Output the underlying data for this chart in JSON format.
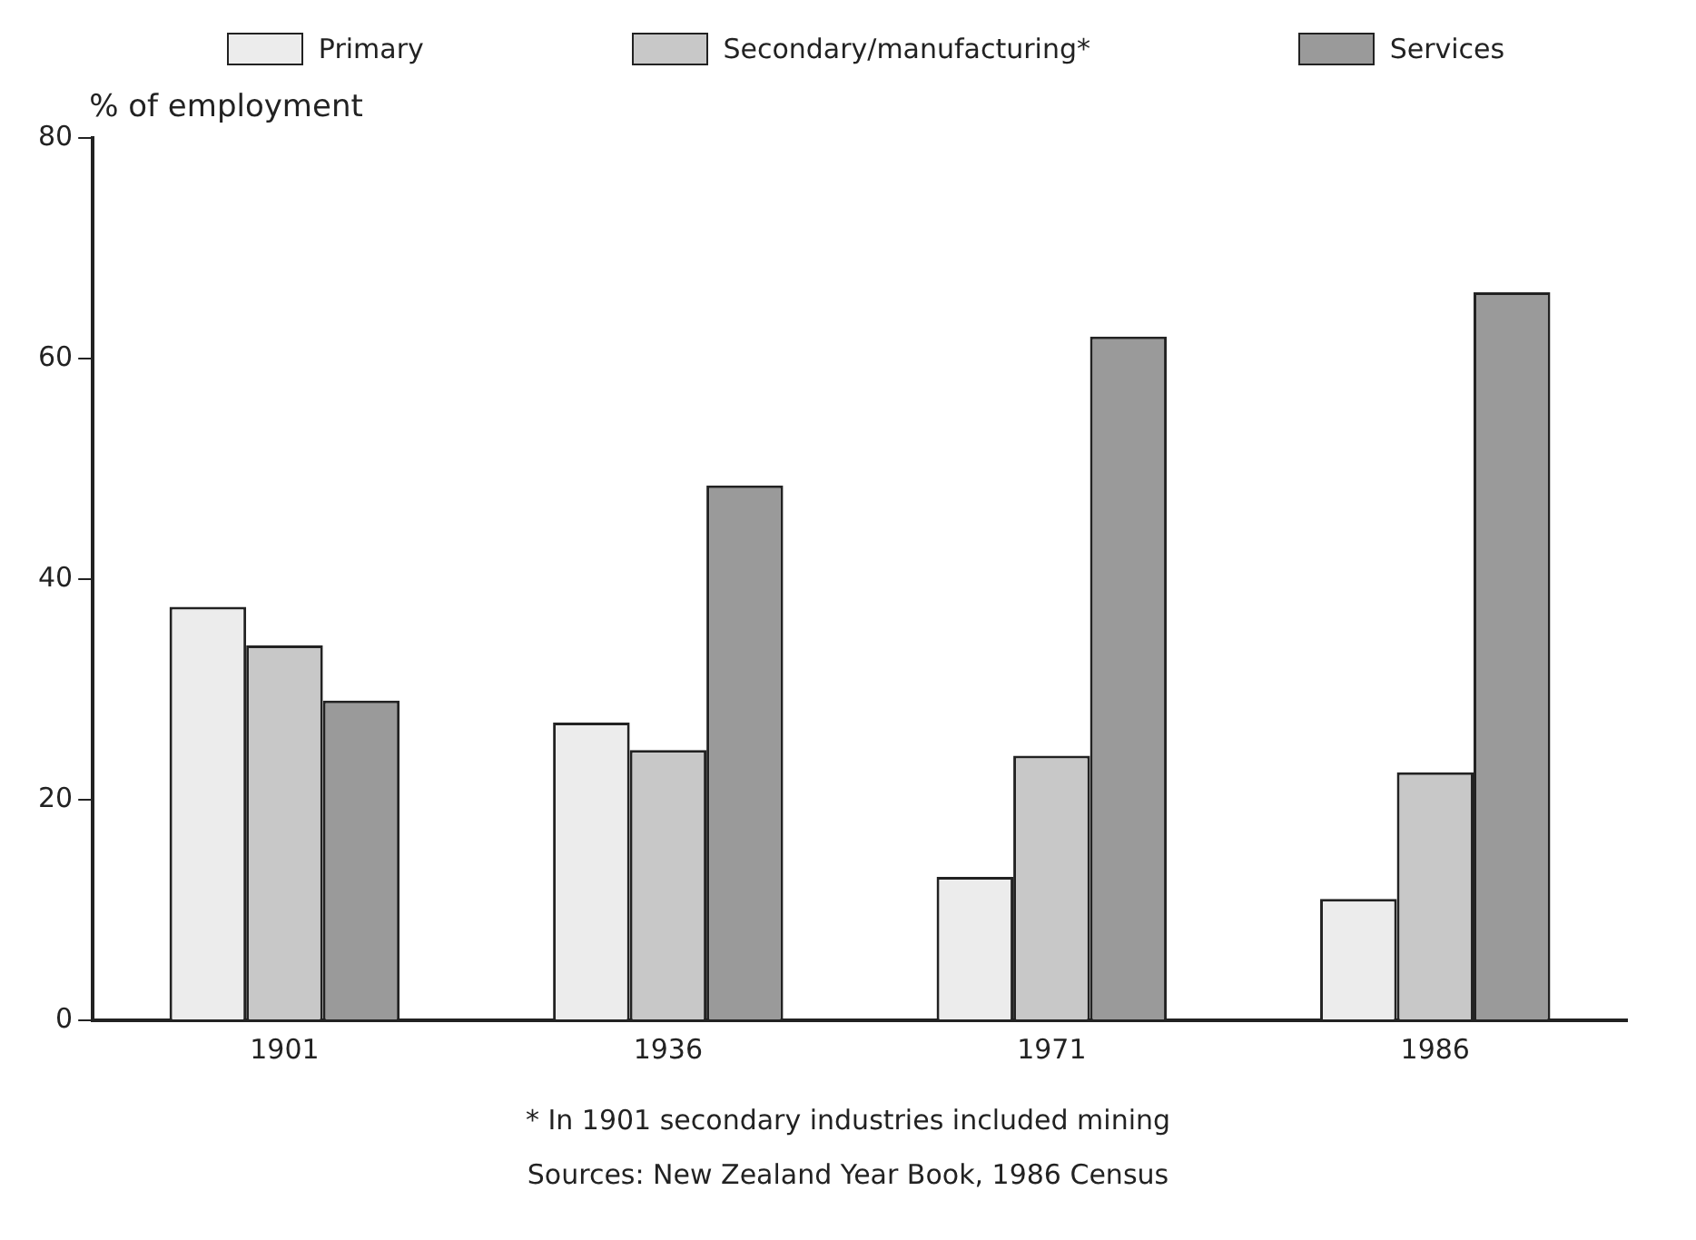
{
  "chart_data": {
    "type": "bar",
    "ylabel": "% of employment",
    "categories": [
      "1901",
      "1936",
      "1971",
      "1986"
    ],
    "series": [
      {
        "name": "Primary",
        "color": "#ececec",
        "values": [
          37.5,
          27,
          13,
          11
        ]
      },
      {
        "name": "Secondary/manufacturing*",
        "color": "#c8c8c8",
        "values": [
          34,
          24.5,
          24,
          22.5
        ]
      },
      {
        "name": "Services",
        "color": "#9a9a9a",
        "values": [
          29,
          48.5,
          62,
          66
        ]
      }
    ],
    "ylim": [
      0,
      80
    ],
    "yticks": [
      0,
      20,
      40,
      60,
      80
    ],
    "grid": false,
    "legend": "top",
    "annotations": [
      "* In 1901 secondary industries included mining",
      "Sources: New Zealand Year Book, 1986 Census"
    ]
  }
}
